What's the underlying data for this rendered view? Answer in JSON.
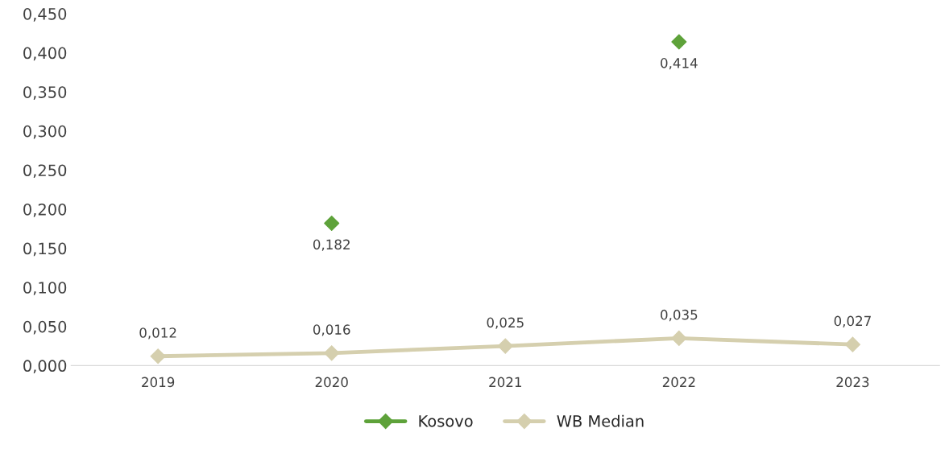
{
  "chart_data": {
    "type": "line",
    "categories": [
      "2019",
      "2020",
      "2021",
      "2022",
      "2023"
    ],
    "series": [
      {
        "name": "Kosovo",
        "type": "scatter",
        "color": "#5ea23a",
        "values": [
          null,
          0.182,
          null,
          0.414,
          null
        ],
        "value_labels": [
          null,
          "0,182",
          null,
          "0,414",
          null
        ]
      },
      {
        "name": "WB Median",
        "color": "#d5cfae",
        "values": [
          0.012,
          0.016,
          0.025,
          0.035,
          0.027
        ],
        "value_labels": [
          "0,012",
          "0,016",
          "0,025",
          "0,035",
          "0,027"
        ]
      }
    ],
    "ylim": [
      0,
      0.45
    ],
    "yticks": [
      {
        "value": 0,
        "label": "0,000"
      },
      {
        "value": 0.05,
        "label": "0,050"
      },
      {
        "value": 0.1,
        "label": "0,100"
      },
      {
        "value": 0.15,
        "label": "0,150"
      },
      {
        "value": 0.2,
        "label": "0,200"
      },
      {
        "value": 0.25,
        "label": "0,250"
      },
      {
        "value": 0.3,
        "label": "0,300"
      },
      {
        "value": 0.35,
        "label": "0,350"
      },
      {
        "value": 0.4,
        "label": "0,400"
      },
      {
        "value": 0.45,
        "label": "0,450"
      }
    ],
    "marker": "diamond",
    "line_style": "solid",
    "grid": false,
    "legend": "bottom"
  }
}
